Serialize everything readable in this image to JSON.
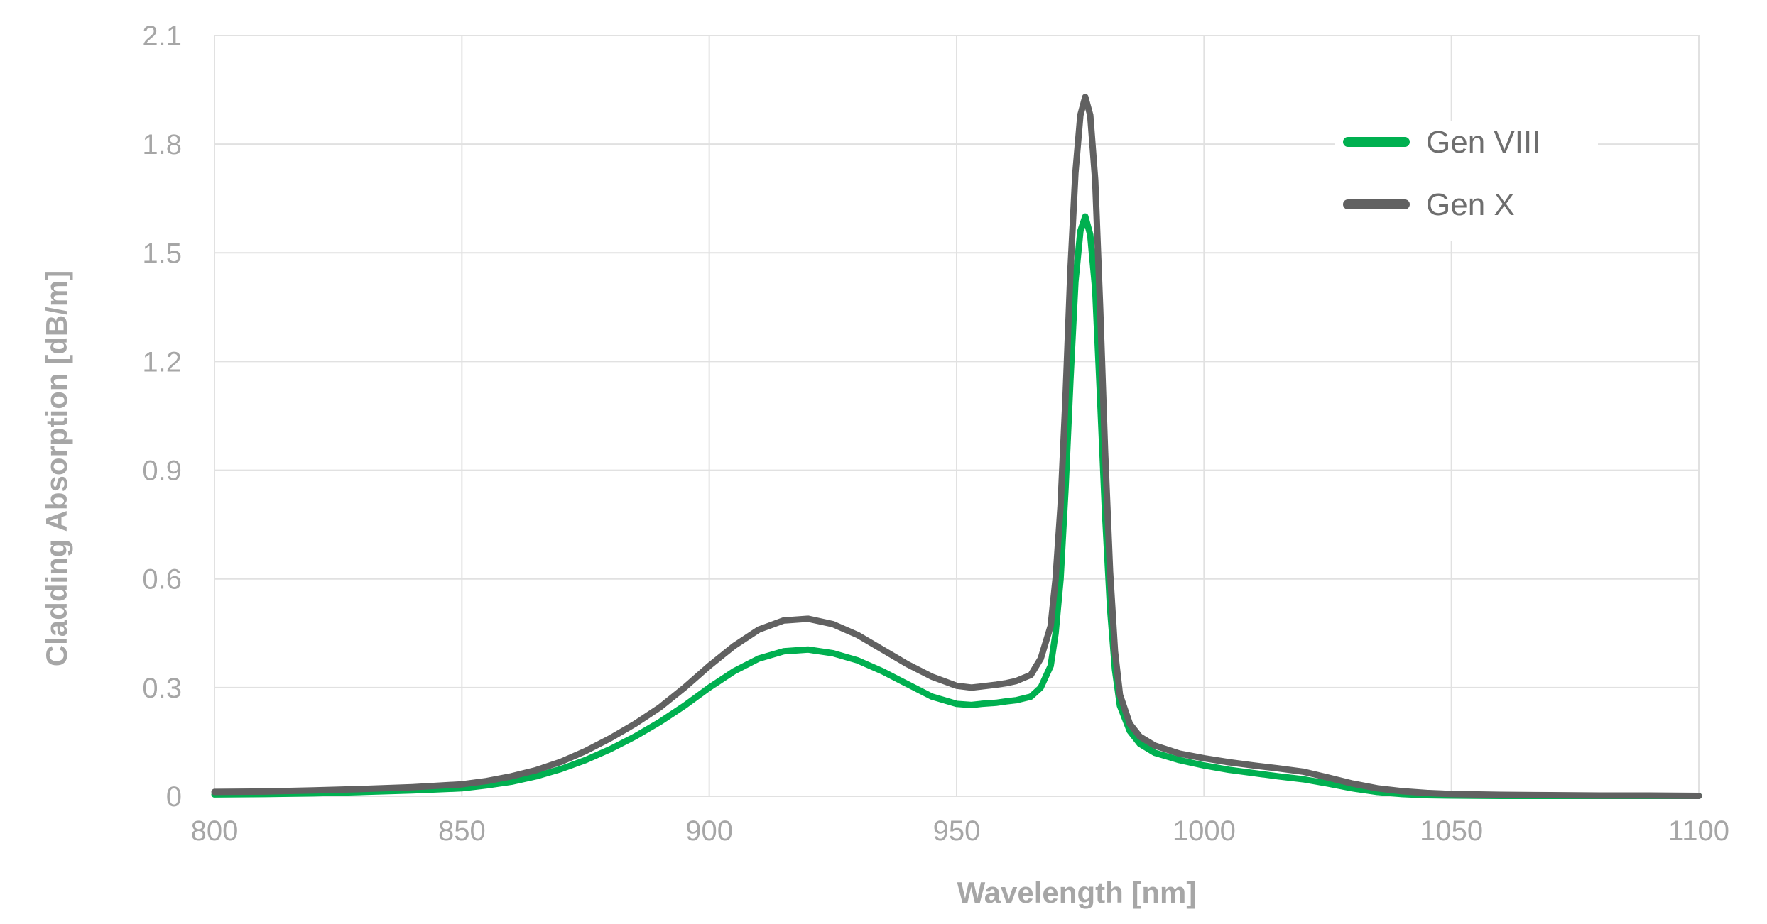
{
  "chart_data": {
    "type": "line",
    "title": "",
    "xlabel": "Wavelength [nm]",
    "ylabel": "Cladding Absorption [dB/m]",
    "xlim": [
      800,
      1100
    ],
    "ylim": [
      0,
      2.1
    ],
    "x_ticks": [
      "800",
      "850",
      "900",
      "950",
      "1000",
      "1050",
      "1100"
    ],
    "y_ticks": [
      "0",
      "0.3",
      "0.6",
      "0.9",
      "1.2",
      "1.5",
      "1.8",
      "2.1"
    ],
    "grid": true,
    "legend_position": "top-right",
    "series": [
      {
        "name": "Gen VIII",
        "color": "#00b050",
        "x": [
          800,
          810,
          820,
          830,
          840,
          850,
          855,
          860,
          865,
          870,
          875,
          880,
          885,
          890,
          895,
          900,
          905,
          910,
          915,
          920,
          925,
          930,
          935,
          940,
          945,
          950,
          953,
          955,
          958,
          960,
          962,
          965,
          967,
          969,
          970,
          971,
          972,
          973,
          974,
          975,
          976,
          977,
          978,
          979,
          980,
          981,
          982,
          983,
          985,
          987,
          990,
          995,
          1000,
          1005,
          1010,
          1015,
          1020,
          1025,
          1030,
          1035,
          1040,
          1045,
          1050,
          1060,
          1070,
          1080,
          1090,
          1100
        ],
        "y": [
          0.005,
          0.006,
          0.008,
          0.012,
          0.016,
          0.022,
          0.03,
          0.04,
          0.055,
          0.075,
          0.1,
          0.13,
          0.165,
          0.205,
          0.25,
          0.3,
          0.345,
          0.38,
          0.4,
          0.405,
          0.395,
          0.375,
          0.345,
          0.31,
          0.275,
          0.255,
          0.252,
          0.255,
          0.258,
          0.262,
          0.265,
          0.275,
          0.3,
          0.36,
          0.45,
          0.6,
          0.85,
          1.15,
          1.42,
          1.56,
          1.6,
          1.55,
          1.4,
          1.1,
          0.78,
          0.52,
          0.35,
          0.25,
          0.18,
          0.145,
          0.12,
          0.1,
          0.085,
          0.073,
          0.064,
          0.055,
          0.047,
          0.035,
          0.022,
          0.012,
          0.006,
          0.003,
          0.002,
          0.001,
          0.001,
          0.001,
          0.001,
          0.001
        ]
      },
      {
        "name": "Gen X",
        "color": "#616161",
        "x": [
          800,
          810,
          820,
          830,
          840,
          850,
          855,
          860,
          865,
          870,
          875,
          880,
          885,
          890,
          895,
          900,
          905,
          910,
          915,
          920,
          925,
          930,
          935,
          940,
          945,
          950,
          953,
          955,
          958,
          960,
          962,
          965,
          967,
          969,
          970,
          971,
          972,
          973,
          974,
          975,
          976,
          977,
          978,
          979,
          980,
          981,
          982,
          983,
          985,
          987,
          990,
          995,
          1000,
          1005,
          1010,
          1015,
          1020,
          1025,
          1030,
          1035,
          1040,
          1045,
          1050,
          1060,
          1070,
          1080,
          1090,
          1100
        ],
        "y": [
          0.012,
          0.013,
          0.016,
          0.02,
          0.025,
          0.033,
          0.042,
          0.055,
          0.072,
          0.095,
          0.125,
          0.16,
          0.2,
          0.245,
          0.3,
          0.36,
          0.415,
          0.46,
          0.485,
          0.49,
          0.475,
          0.445,
          0.405,
          0.365,
          0.33,
          0.305,
          0.3,
          0.303,
          0.308,
          0.312,
          0.318,
          0.335,
          0.38,
          0.47,
          0.6,
          0.8,
          1.1,
          1.45,
          1.72,
          1.88,
          1.93,
          1.88,
          1.7,
          1.35,
          0.95,
          0.62,
          0.4,
          0.28,
          0.2,
          0.165,
          0.14,
          0.118,
          0.105,
          0.094,
          0.085,
          0.077,
          0.068,
          0.052,
          0.035,
          0.022,
          0.014,
          0.009,
          0.006,
          0.004,
          0.003,
          0.002,
          0.002,
          0.001
        ]
      }
    ]
  }
}
